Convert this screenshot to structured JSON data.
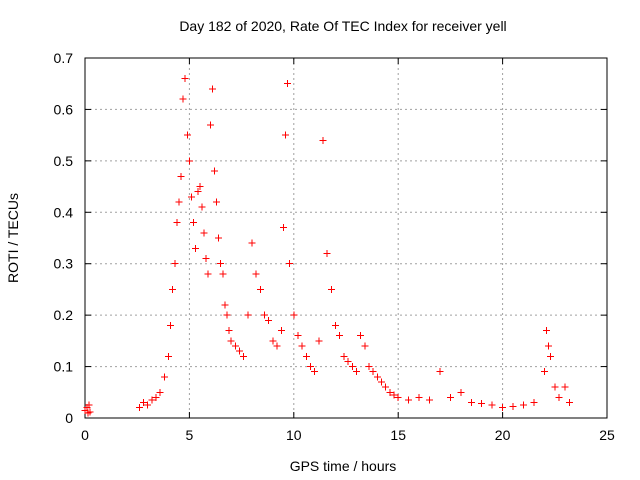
{
  "chart_data": {
    "type": "scatter",
    "title": "Day 182 of 2020, Rate Of TEC Index for receiver yell",
    "xlabel": "GPS time / hours",
    "ylabel": "ROTI / TECUs",
    "xlim": [
      0,
      25
    ],
    "ylim": [
      0,
      0.7
    ],
    "x_ticks": [
      0,
      5,
      10,
      15,
      20,
      25
    ],
    "x_tick_labels": [
      "0",
      "5",
      "10",
      "15",
      "20",
      "25"
    ],
    "y_ticks": [
      0,
      0.1,
      0.2,
      0.3,
      0.4,
      0.5,
      0.6,
      0.7
    ],
    "y_tick_labels": [
      "0",
      "0.1",
      "0.2",
      "0.3",
      "0.4",
      "0.5",
      "0.6",
      "0.7"
    ],
    "grid": true,
    "marker": "+",
    "marker_color": "#ff0000",
    "series": [
      {
        "name": "ROTI",
        "color": "#ff0000",
        "points": [
          [
            0.0,
            0.015
          ],
          [
            0.1,
            0.02
          ],
          [
            0.15,
            0.01
          ],
          [
            0.2,
            0.025
          ],
          [
            0.25,
            0.012
          ],
          [
            2.6,
            0.02
          ],
          [
            2.8,
            0.03
          ],
          [
            3.0,
            0.025
          ],
          [
            3.2,
            0.035
          ],
          [
            3.4,
            0.04
          ],
          [
            3.6,
            0.05
          ],
          [
            3.8,
            0.08
          ],
          [
            4.0,
            0.12
          ],
          [
            4.1,
            0.18
          ],
          [
            4.2,
            0.25
          ],
          [
            4.3,
            0.3
          ],
          [
            4.4,
            0.38
          ],
          [
            4.5,
            0.42
          ],
          [
            4.6,
            0.47
          ],
          [
            4.7,
            0.62
          ],
          [
            4.8,
            0.66
          ],
          [
            4.9,
            0.55
          ],
          [
            5.0,
            0.5
          ],
          [
            5.1,
            0.43
          ],
          [
            5.2,
            0.38
          ],
          [
            5.3,
            0.33
          ],
          [
            5.4,
            0.44
          ],
          [
            5.5,
            0.45
          ],
          [
            5.6,
            0.41
          ],
          [
            5.7,
            0.36
          ],
          [
            5.8,
            0.31
          ],
          [
            5.9,
            0.28
          ],
          [
            6.0,
            0.57
          ],
          [
            6.1,
            0.64
          ],
          [
            6.2,
            0.48
          ],
          [
            6.3,
            0.42
          ],
          [
            6.4,
            0.35
          ],
          [
            6.5,
            0.3
          ],
          [
            6.6,
            0.28
          ],
          [
            6.7,
            0.22
          ],
          [
            6.8,
            0.2
          ],
          [
            6.9,
            0.17
          ],
          [
            7.0,
            0.15
          ],
          [
            7.2,
            0.14
          ],
          [
            7.4,
            0.13
          ],
          [
            7.6,
            0.12
          ],
          [
            7.8,
            0.2
          ],
          [
            8.0,
            0.34
          ],
          [
            8.2,
            0.28
          ],
          [
            8.4,
            0.25
          ],
          [
            8.6,
            0.2
          ],
          [
            8.8,
            0.19
          ],
          [
            9.0,
            0.15
          ],
          [
            9.2,
            0.14
          ],
          [
            9.4,
            0.17
          ],
          [
            9.5,
            0.37
          ],
          [
            9.6,
            0.55
          ],
          [
            9.7,
            0.65
          ],
          [
            9.8,
            0.3
          ],
          [
            10.0,
            0.2
          ],
          [
            10.2,
            0.16
          ],
          [
            10.4,
            0.14
          ],
          [
            10.6,
            0.12
          ],
          [
            10.8,
            0.1
          ],
          [
            11.0,
            0.09
          ],
          [
            11.2,
            0.15
          ],
          [
            11.4,
            0.54
          ],
          [
            11.6,
            0.32
          ],
          [
            11.8,
            0.25
          ],
          [
            12.0,
            0.18
          ],
          [
            12.2,
            0.16
          ],
          [
            12.4,
            0.12
          ],
          [
            12.6,
            0.11
          ],
          [
            12.8,
            0.1
          ],
          [
            13.0,
            0.09
          ],
          [
            13.2,
            0.16
          ],
          [
            13.4,
            0.14
          ],
          [
            13.6,
            0.1
          ],
          [
            13.8,
            0.09
          ],
          [
            14.0,
            0.08
          ],
          [
            14.2,
            0.07
          ],
          [
            14.4,
            0.06
          ],
          [
            14.6,
            0.05
          ],
          [
            14.8,
            0.045
          ],
          [
            15.0,
            0.04
          ],
          [
            15.5,
            0.035
          ],
          [
            16.0,
            0.04
          ],
          [
            16.5,
            0.035
          ],
          [
            17.0,
            0.09
          ],
          [
            17.5,
            0.04
          ],
          [
            18.0,
            0.05
          ],
          [
            18.5,
            0.03
          ],
          [
            19.0,
            0.028
          ],
          [
            19.5,
            0.025
          ],
          [
            20.0,
            0.02
          ],
          [
            20.5,
            0.022
          ],
          [
            21.0,
            0.025
          ],
          [
            21.5,
            0.03
          ],
          [
            22.0,
            0.09
          ],
          [
            22.1,
            0.17
          ],
          [
            22.2,
            0.14
          ],
          [
            22.3,
            0.12
          ],
          [
            22.5,
            0.06
          ],
          [
            22.7,
            0.04
          ],
          [
            23.0,
            0.06
          ],
          [
            23.2,
            0.03
          ]
        ]
      }
    ]
  }
}
